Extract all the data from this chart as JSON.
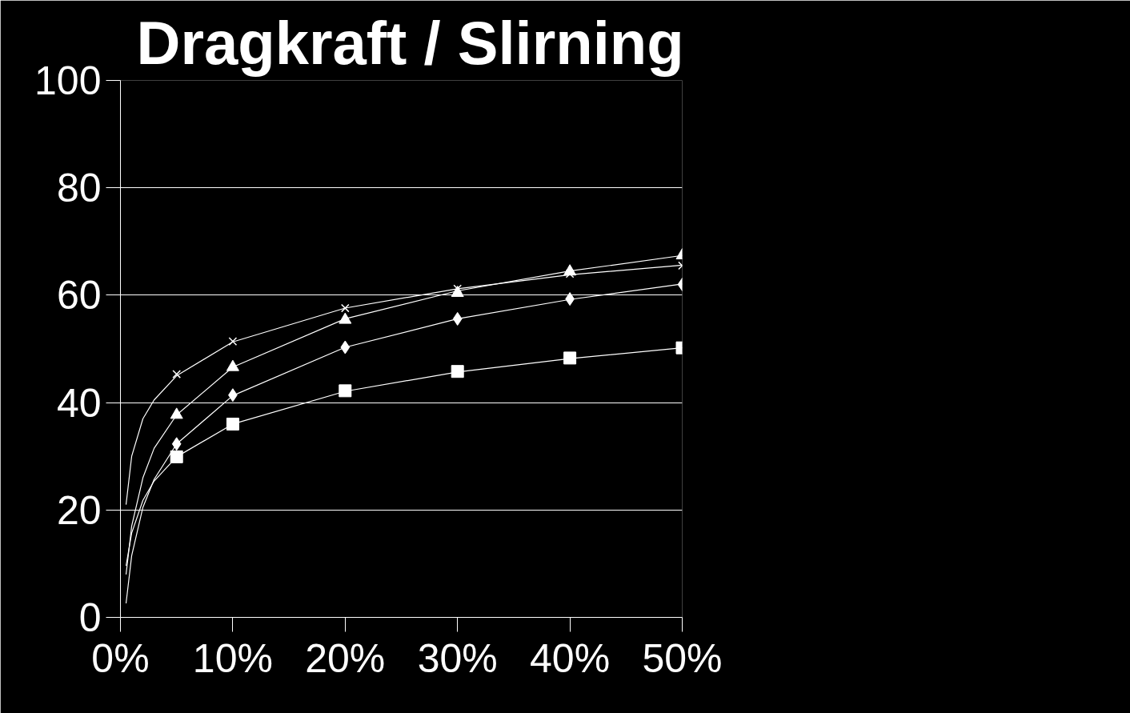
{
  "chart_data": {
    "type": "scatter",
    "title": "Dragkraft / Slirning",
    "xlim": [
      0,
      50
    ],
    "ylim": [
      0,
      100
    ],
    "xticks": [
      {
        "value": 0,
        "label": "0%"
      },
      {
        "value": 10,
        "label": "10%"
      },
      {
        "value": 20,
        "label": "20%"
      },
      {
        "value": 30,
        "label": "30%"
      },
      {
        "value": 40,
        "label": "40%"
      },
      {
        "value": 50,
        "label": "50%"
      }
    ],
    "yticks": [
      0,
      20,
      40,
      60,
      80,
      100
    ],
    "grid": "y",
    "series": [
      {
        "marker": "diamond",
        "color": "#ffffff",
        "x": [
          5,
          10,
          20,
          30,
          40,
          50
        ],
        "values": [
          32.3,
          41.4,
          50.3,
          55.6,
          59.3,
          62.0
        ]
      },
      {
        "marker": "square",
        "color": "#ffffff",
        "x": [
          5,
          10,
          20,
          30,
          40,
          50
        ],
        "values": [
          29.9,
          36.0,
          42.2,
          45.8,
          48.3,
          50.2
        ]
      },
      {
        "marker": "triangle",
        "color": "#ffffff",
        "x": [
          5,
          10,
          20,
          30,
          40,
          50
        ],
        "values": [
          37.7,
          46.6,
          55.4,
          60.4,
          64.4,
          67.4
        ]
      },
      {
        "marker": "cross",
        "color": "#ffffff",
        "x": [
          5,
          10,
          20,
          30,
          40,
          50
        ],
        "values": [
          45.3,
          51.4,
          57.6,
          61.2,
          64.0,
          65.5
        ]
      },
      {
        "type": "line",
        "marker": "none",
        "color": "#ffffff",
        "x": [
          0.5,
          1,
          2,
          3,
          5,
          10,
          20,
          30,
          40,
          50
        ],
        "values": [
          2.6,
          11.5,
          20.5,
          25.7,
          32.3,
          41.3,
          50.3,
          55.6,
          59.2,
          62.1
        ]
      },
      {
        "type": "line",
        "marker": "none",
        "color": "#ffffff",
        "x": [
          0.5,
          1,
          2,
          3,
          5,
          10,
          20,
          30,
          40,
          50
        ],
        "values": [
          9.6,
          15.7,
          21.8,
          25.4,
          29.9,
          36.0,
          42.1,
          45.7,
          48.2,
          50.2
        ]
      },
      {
        "type": "line",
        "marker": "none",
        "color": "#ffffff",
        "x": [
          0.5,
          1,
          2,
          3,
          5,
          10,
          20,
          30,
          40,
          50
        ],
        "values": [
          8.0,
          17.0,
          26.0,
          31.5,
          37.7,
          46.6,
          55.6,
          60.8,
          64.5,
          67.4
        ]
      },
      {
        "type": "line",
        "marker": "none",
        "color": "#ffffff",
        "x": [
          0.5,
          1,
          2,
          3,
          5,
          10,
          20,
          30,
          40,
          50
        ],
        "values": [
          21.0,
          30.0,
          37.0,
          40.5,
          45.0,
          51.3,
          57.6,
          61.2,
          63.8,
          65.6
        ]
      }
    ]
  }
}
